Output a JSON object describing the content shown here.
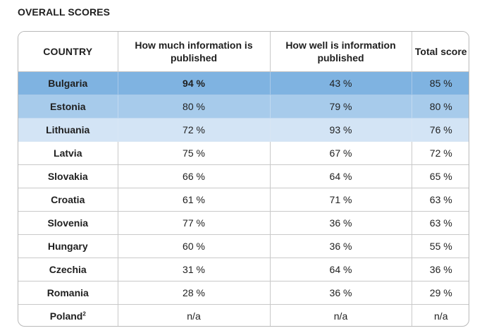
{
  "title": "OVERALL SCORES",
  "table": {
    "headers": {
      "country": "COUNTRY",
      "how_much": "How much information is published",
      "how_well": "How well is information published",
      "total": "Total score"
    },
    "rows": [
      {
        "country": "Bulgaria",
        "how_much": "94 %",
        "how_well": "43 %",
        "total": "85 %"
      },
      {
        "country": "Estonia",
        "how_much": "80 %",
        "how_well": "79 %",
        "total": "80 %"
      },
      {
        "country": "Lithuania",
        "how_much": "72 %",
        "how_well": "93 %",
        "total": "76 %"
      },
      {
        "country": "Latvia",
        "how_much": "75 %",
        "how_well": "67 %",
        "total": "72 %"
      },
      {
        "country": "Slovakia",
        "how_much": "66 %",
        "how_well": "64 %",
        "total": "65 %"
      },
      {
        "country": "Croatia",
        "how_much": "61 %",
        "how_well": "71 %",
        "total": "63 %"
      },
      {
        "country": "Slovenia",
        "how_much": "77 %",
        "how_well": "36 %",
        "total": "63 %"
      },
      {
        "country": "Hungary",
        "how_much": "60 %",
        "how_well": "36 %",
        "total": "55 %"
      },
      {
        "country": "Czechia",
        "how_much": "31 %",
        "how_well": "64 %",
        "total": "36 %"
      },
      {
        "country": "Romania",
        "how_much": "28 %",
        "how_well": "36 %",
        "total": "29 %"
      },
      {
        "country": "Poland",
        "country_sup": "2",
        "how_much": "n/a",
        "how_well": "n/a",
        "total": "n/a"
      }
    ]
  },
  "colors": {
    "rank1_fill": "#7fb3e1",
    "rank2_fill": "#a7cbeb",
    "rank3_fill": "#d3e4f5",
    "border": "#c9c9c9"
  }
}
